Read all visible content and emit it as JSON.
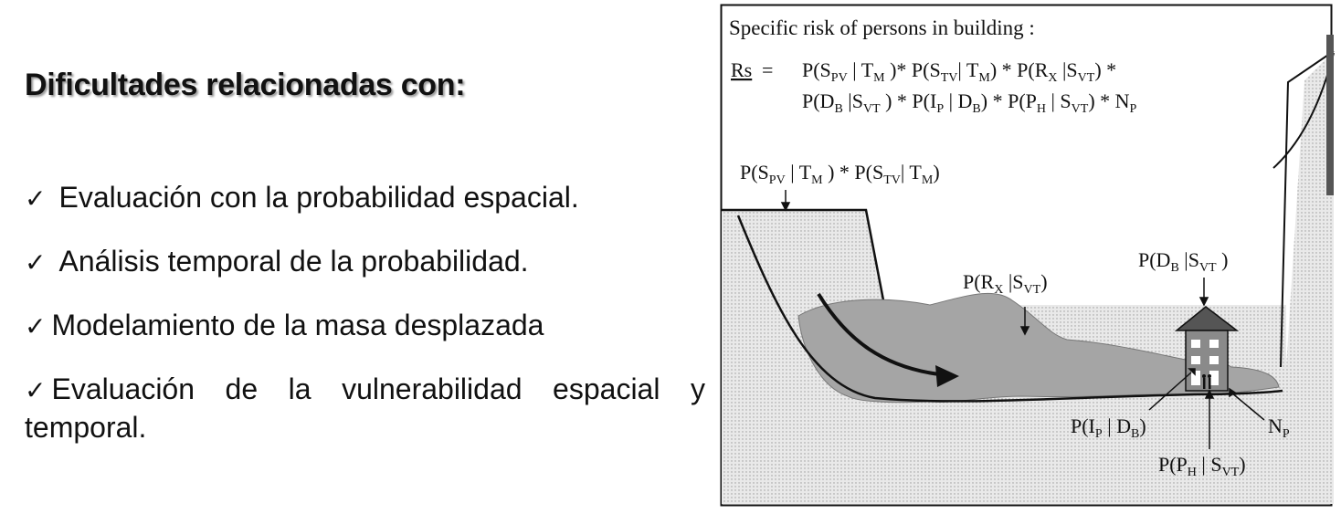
{
  "heading": "Dificultades relacionadas con:",
  "bullets": {
    "check_symbol": "✓",
    "item1": "Evaluación con la probabilidad espacial.",
    "item2": "Análisis temporal de la probabilidad.",
    "item3": "Modelamiento de la masa desplazada",
    "item4_words": [
      "Evaluación",
      "de",
      "la",
      "vulnerabilidad",
      "espacial",
      "y"
    ],
    "item4_line2": "temporal."
  },
  "diagram": {
    "title": "Specific risk of persons in building :",
    "rs_label": "Rs",
    "rs_equals": "="
  },
  "colors": {
    "ground_fill": "#e6e6e6",
    "mass_fill": "#a9a9a9",
    "house_roof": "#555555",
    "frame": "#111111"
  }
}
